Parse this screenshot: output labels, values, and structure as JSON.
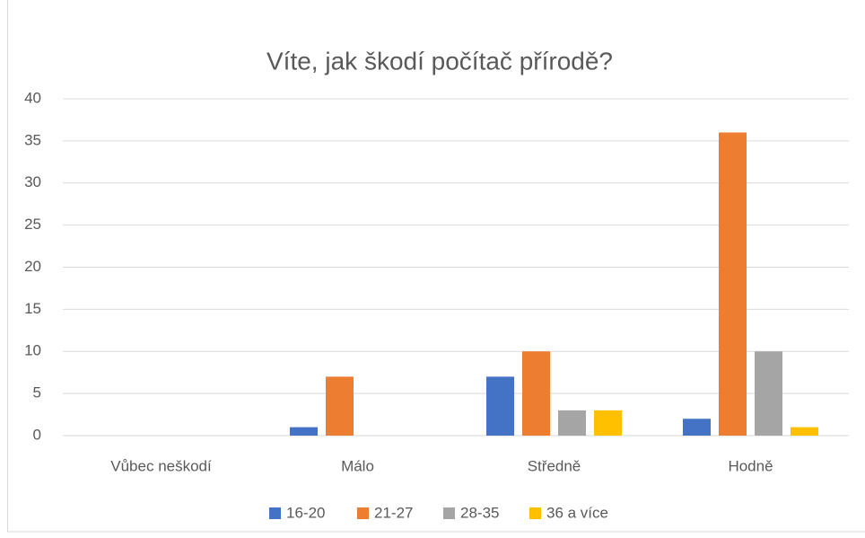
{
  "chart_data": {
    "type": "bar",
    "title": "Víte, jak škodí počítač přírodě?",
    "categories": [
      "Vůbec neškodí",
      "Málo",
      "Středně",
      "Hodně"
    ],
    "series": [
      {
        "name": "16-20",
        "color": "#4472c4",
        "values": [
          0,
          1,
          7,
          2
        ]
      },
      {
        "name": "21-27",
        "color": "#ed7d31",
        "values": [
          0,
          7,
          10,
          36
        ]
      },
      {
        "name": "28-35",
        "color": "#a5a5a5",
        "values": [
          0,
          0,
          3,
          10
        ]
      },
      {
        "name": "36 a více",
        "color": "#ffc000",
        "values": [
          0,
          0,
          3,
          1
        ]
      }
    ],
    "ylim": [
      0,
      40
    ],
    "yticks": [
      0,
      5,
      10,
      15,
      20,
      25,
      30,
      35,
      40
    ],
    "grid": true,
    "legend": "bottom"
  }
}
